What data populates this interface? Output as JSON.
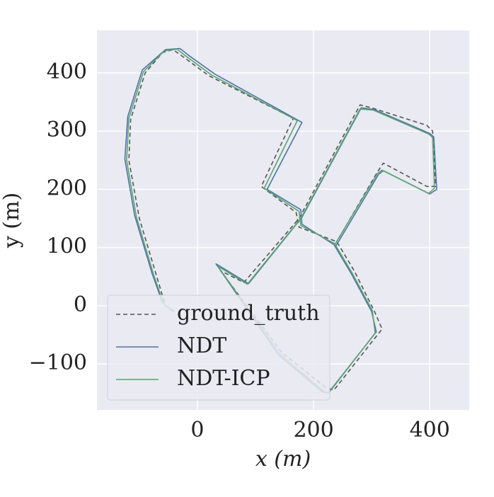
{
  "chart_data": {
    "type": "line",
    "xlabel": "x (m)",
    "ylabel": "y (m)",
    "xlim": [
      -173,
      468
    ],
    "ylim": [
      -179,
      473
    ],
    "xticks": [
      0,
      200,
      400
    ],
    "yticks": [
      {
        "value": -100,
        "label": "−100"
      },
      0,
      100,
      200,
      300,
      400
    ],
    "grid": true,
    "legend": "lower left",
    "series": [
      {
        "name": "ground_truth",
        "color": "#555555",
        "dash": true,
        "x": [
          -40,
          -55,
          -70,
          -100,
          -118,
          -115,
          -90,
          -60,
          -42,
          -25,
          20,
          165,
          110,
          170,
          175,
          240,
          270,
          305,
          318,
          235,
          220,
          145,
          40,
          80,
          175,
          280,
          300,
          395,
          405,
          410,
          395,
          320,
          310,
          240
        ],
        "values": [
          -10,
          0,
          50,
          150,
          250,
          320,
          400,
          435,
          440,
          428,
          395,
          322,
          205,
          160,
          135,
          110,
          60,
          -10,
          -40,
          -145,
          -140,
          -80,
          60,
          40,
          150,
          345,
          340,
          310,
          300,
          205,
          205,
          245,
          230,
          110
        ]
      },
      {
        "name": "NDT",
        "color": "#4c72b0",
        "dash": false,
        "x": [
          -45,
          -60,
          -78,
          -108,
          -125,
          -120,
          -95,
          -55,
          -30,
          -15,
          30,
          180,
          120,
          178,
          180,
          235,
          265,
          300,
          308,
          225,
          215,
          140,
          32,
          88,
          180,
          282,
          305,
          400,
          407,
          412,
          400,
          320,
          312,
          238
        ],
        "values": [
          -8,
          5,
          55,
          155,
          252,
          325,
          405,
          440,
          442,
          430,
          398,
          315,
          200,
          165,
          140,
          105,
          55,
          -10,
          -45,
          -150,
          -148,
          -85,
          72,
          38,
          152,
          340,
          337,
          296,
          290,
          200,
          192,
          232,
          226,
          102
        ]
      },
      {
        "name": "NDT-ICP",
        "color": "#55a868",
        "dash": false,
        "x": [
          -43,
          -58,
          -75,
          -105,
          -122,
          -118,
          -93,
          -57,
          -35,
          -20,
          25,
          172,
          115,
          175,
          178,
          236,
          266,
          301,
          306,
          226,
          216,
          142,
          35,
          86,
          178,
          280,
          303,
          398,
          405,
          408,
          398,
          318,
          310,
          236
        ],
        "values": [
          -9,
          3,
          52,
          152,
          250,
          322,
          402,
          438,
          441,
          429,
          396,
          318,
          202,
          162,
          138,
          107,
          57,
          -8,
          -47,
          -150,
          -146,
          -83,
          68,
          37,
          150,
          338,
          336,
          295,
          289,
          202,
          193,
          233,
          227,
          104
        ]
      }
    ]
  }
}
